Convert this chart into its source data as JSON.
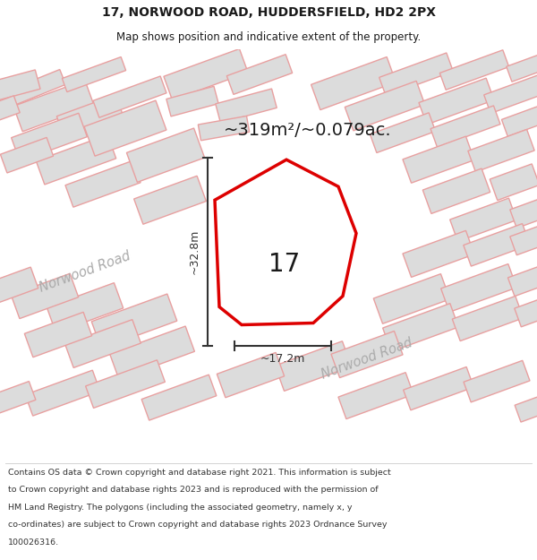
{
  "title_line1": "17, NORWOOD ROAD, HUDDERSFIELD, HD2 2PX",
  "title_line2": "Map shows position and indicative extent of the property.",
  "area_text": "~319m²/~0.079ac.",
  "number_label": "17",
  "dim_vertical": "~32.8m",
  "dim_horizontal": "~17.2m",
  "road_label1": "Norwood Road",
  "road_label2": "Norwood Road",
  "footer_lines": [
    "Contains OS data © Crown copyright and database right 2021. This information is subject",
    "to Crown copyright and database rights 2023 and is reproduced with the permission of",
    "HM Land Registry. The polygons (including the associated geometry, namely x, y",
    "co-ordinates) are subject to Crown copyright and database rights 2023 Ordnance Survey",
    "100026316."
  ],
  "bg_color": "#ffffff",
  "map_bg": "#f2f0f0",
  "building_fill": "#dcdcdc",
  "building_stroke": "#e8a0a0",
  "plot_stroke": "#dd0000",
  "title_color": "#1a1a1a",
  "dim_color": "#333333",
  "road_text_color": "#aaaaaa",
  "footer_color": "#333333"
}
